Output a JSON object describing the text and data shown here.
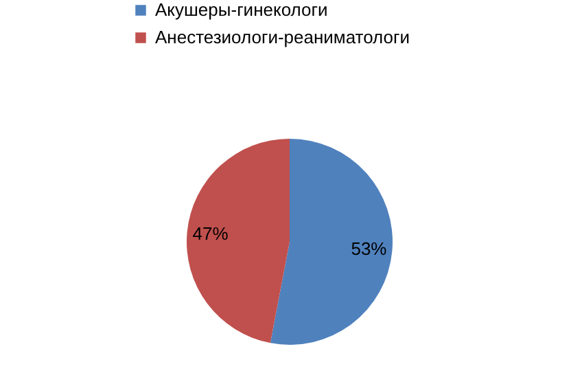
{
  "chart_data": {
    "type": "pie",
    "categories": [
      "Акушеры-гинекологи",
      "Анестезиологи-реаниматологи"
    ],
    "values": [
      53,
      47
    ],
    "colors": [
      "#4f81bd",
      "#c0504d"
    ],
    "value_labels": [
      "53%",
      "47%"
    ],
    "legend": "top"
  }
}
